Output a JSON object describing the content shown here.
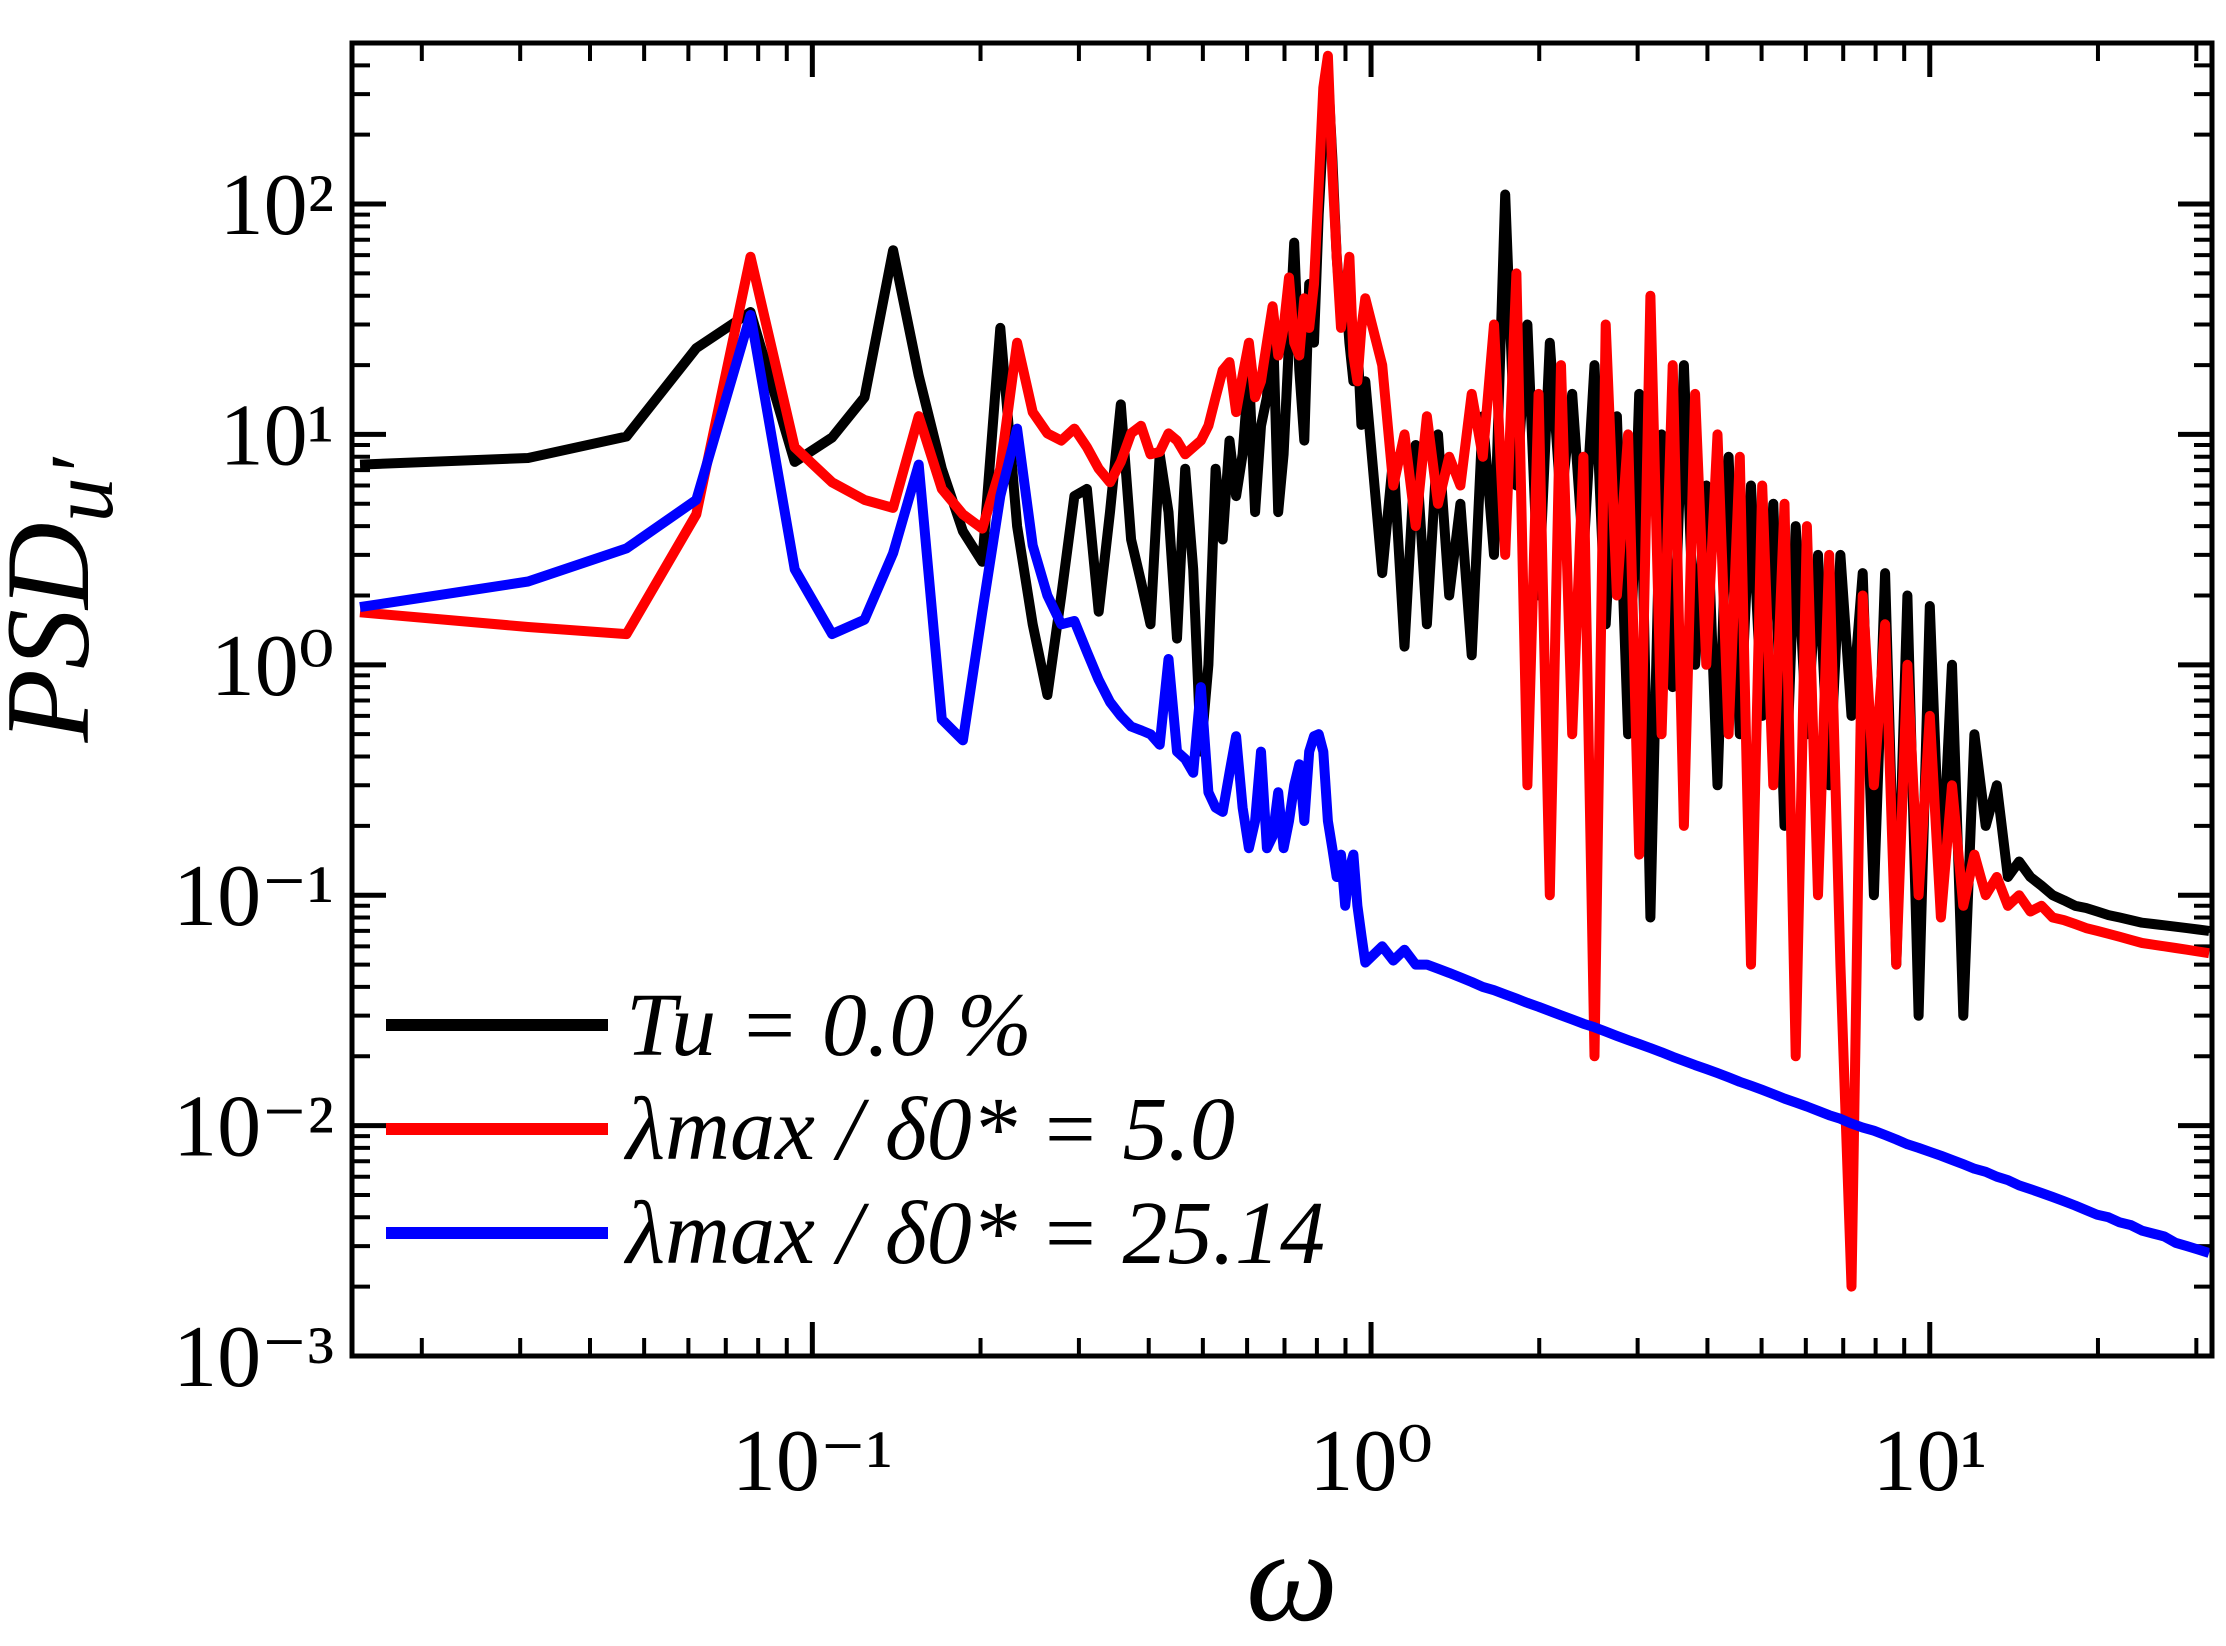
{
  "chart_data": {
    "type": "line",
    "xlabel": "ω",
    "ylabel": "PSD",
    "ylabel_sub": "u′",
    "xscale": "log",
    "yscale": "log",
    "xlim": [
      0.015,
      32
    ],
    "ylim": [
      0.001,
      500
    ],
    "xticks": [
      {
        "value": 0.1,
        "label": "10⁻¹"
      },
      {
        "value": 1,
        "label": "10⁰"
      },
      {
        "value": 10,
        "label": "10¹"
      }
    ],
    "yticks": [
      {
        "value": 0.001,
        "label": "10⁻³"
      },
      {
        "value": 0.01,
        "label": "10⁻²"
      },
      {
        "value": 0.1,
        "label": "10⁻¹"
      },
      {
        "value": 1,
        "label": "10⁰"
      },
      {
        "value": 10,
        "label": "10¹"
      },
      {
        "value": 100,
        "label": "10²"
      }
    ],
    "legend": "lower left",
    "x": [
      0.0155,
      0.031,
      0.0465,
      0.062,
      0.0775,
      0.093,
      0.1085,
      0.124,
      0.1395,
      0.155,
      0.1705,
      0.186,
      0.2015,
      0.217,
      0.2325,
      0.248,
      0.2635,
      0.279,
      0.2945,
      0.31,
      0.3255,
      0.341,
      0.3565,
      0.372,
      0.3875,
      0.403,
      0.4185,
      0.434,
      0.4495,
      0.465,
      0.4805,
      0.496,
      0.5115,
      0.527,
      0.5425,
      0.558,
      0.5735,
      0.589,
      0.6045,
      0.62,
      0.6355,
      0.651,
      0.6665,
      0.682,
      0.6975,
      0.713,
      0.7285,
      0.744,
      0.7595,
      0.775,
      0.7905,
      0.806,
      0.8215,
      0.837,
      0.8525,
      0.868,
      0.8835,
      0.899,
      0.9145,
      0.93,
      0.9455,
      0.961,
      0.9765,
      1.047,
      1.096,
      1.148,
      1.202,
      1.259,
      1.318,
      1.38,
      1.445,
      1.514,
      1.585,
      1.66,
      1.738,
      1.82,
      1.905,
      1.995,
      2.089,
      2.188,
      2.291,
      2.399,
      2.512,
      2.63,
      2.754,
      2.884,
      3.02,
      3.162,
      3.311,
      3.467,
      3.631,
      3.802,
      3.981,
      4.169,
      4.365,
      4.571,
      4.786,
      5.012,
      5.248,
      5.495,
      5.754,
      6.026,
      6.31,
      6.607,
      6.918,
      7.244,
      7.586,
      7.943,
      8.318,
      8.71,
      9.12,
      9.55,
      10.0,
      10.47,
      10.96,
      11.48,
      12.02,
      12.59,
      13.18,
      13.8,
      14.45,
      15.14,
      15.85,
      16.6,
      17.38,
      18.2,
      19.05,
      19.95,
      20.89,
      21.88,
      22.91,
      23.99,
      25.12,
      26.3,
      27.54,
      28.84,
      30.2,
      31.62
    ],
    "series": [
      {
        "name": "Tu = 0.0 %",
        "color": "#000000",
        "values": [
          7.4,
          7.9,
          9.8,
          23.7,
          34,
          7.6,
          9.7,
          14.5,
          63,
          18,
          7.1,
          3.8,
          2.8,
          29,
          4,
          1.5,
          0.74,
          2,
          5.4,
          5.8,
          1.7,
          4.6,
          13.5,
          3.5,
          2.3,
          1.5,
          8.2,
          4.6,
          1.3,
          7.1,
          2.6,
          0.42,
          1,
          7.1,
          3.5,
          9.4,
          5.4,
          8.2,
          19,
          4.6,
          10.9,
          14.5,
          34,
          4.6,
          8.2,
          25,
          68,
          19,
          9.4,
          45,
          25,
          90,
          210,
          370,
          160,
          59,
          34,
          45,
          25,
          17,
          25,
          11,
          17,
          2.5,
          8,
          1.2,
          9,
          1.5,
          10,
          2,
          5,
          1.1,
          12,
          3,
          110,
          6,
          30,
          2,
          25,
          5,
          15,
          3,
          20,
          1.5,
          12,
          0.5,
          15,
          0.08,
          10,
          0.8,
          20,
          1,
          6,
          0.3,
          8,
          0.5,
          6,
          0.6,
          5,
          0.2,
          4,
          0.5,
          3,
          0.3,
          3,
          0.6,
          2.5,
          0.1,
          2.5,
          0.05,
          2,
          0.03,
          1.8,
          0.1,
          1,
          0.03,
          0.5,
          0.2,
          0.3,
          0.12,
          0.14,
          0.12,
          0.11,
          0.1,
          0.095,
          0.09,
          0.088,
          0.085,
          0.082,
          0.08,
          0.078,
          0.076,
          0.075,
          0.074,
          0.073,
          0.072,
          0.071,
          0.07
        ]
      },
      {
        "name": "λmax / δ0* = 5.0",
        "color": "#ff0000",
        "values": [
          1.69,
          1.46,
          1.36,
          4.5,
          59,
          8.8,
          6.2,
          5.2,
          4.8,
          12,
          5.8,
          4.5,
          3.9,
          7.1,
          25,
          12.5,
          10.1,
          9.4,
          10.6,
          8.8,
          7.1,
          6.2,
          7.6,
          10.1,
          10.9,
          8.2,
          8.4,
          10.1,
          9.4,
          8.2,
          8.8,
          9.4,
          10.9,
          14.5,
          19,
          20.6,
          12.5,
          18,
          25,
          14.5,
          17,
          25,
          36,
          22,
          29,
          48,
          25,
          22,
          39,
          29,
          45,
          120,
          320,
          440,
          140,
          59,
          29,
          39,
          59,
          22,
          17,
          29,
          39,
          20,
          6,
          10,
          4,
          12,
          5,
          8,
          6,
          15,
          8,
          30,
          3,
          50,
          0.3,
          15,
          0.1,
          20,
          0.5,
          8,
          0.02,
          30,
          2,
          10,
          0.15,
          40,
          0.5,
          20,
          0.2,
          15,
          1,
          10,
          0.5,
          8,
          0.05,
          6,
          0.3,
          5,
          0.02,
          4,
          0.1,
          3,
          0.05,
          0.002,
          2,
          0.3,
          1.5,
          0.05,
          1,
          0.1,
          0.6,
          0.08,
          0.3,
          0.09,
          0.15,
          0.1,
          0.12,
          0.09,
          0.1,
          0.085,
          0.09,
          0.08,
          0.078,
          0.075,
          0.072,
          0.07,
          0.068,
          0.066,
          0.064,
          0.062,
          0.061,
          0.06,
          0.059,
          0.058,
          0.057,
          0.056
        ]
      },
      {
        "name": "λmax / δ0* = 25.14",
        "color": "#0000ff",
        "values": [
          1.78,
          2.3,
          3.2,
          5.2,
          33,
          2.6,
          1.36,
          1.57,
          3.05,
          7.4,
          0.58,
          0.47,
          1.7,
          5.4,
          10.6,
          3.3,
          2,
          1.5,
          1.55,
          1.14,
          0.86,
          0.69,
          0.6,
          0.54,
          0.52,
          0.5,
          0.45,
          1.06,
          0.42,
          0.39,
          0.34,
          0.8,
          0.28,
          0.24,
          0.23,
          0.34,
          0.49,
          0.24,
          0.16,
          0.21,
          0.42,
          0.16,
          0.18,
          0.28,
          0.16,
          0.21,
          0.3,
          0.37,
          0.21,
          0.42,
          0.49,
          0.5,
          0.42,
          0.21,
          0.16,
          0.12,
          0.15,
          0.09,
          0.13,
          0.15,
          0.09,
          0.067,
          0.051,
          0.06,
          0.052,
          0.058,
          0.05,
          0.05,
          0.048,
          0.046,
          0.044,
          0.042,
          0.04,
          0.0387,
          0.0371,
          0.0356,
          0.0341,
          0.0328,
          0.0314,
          0.0301,
          0.0289,
          0.0277,
          0.0267,
          0.0256,
          0.0245,
          0.0235,
          0.0226,
          0.0217,
          0.0208,
          0.0199,
          0.0191,
          0.0183,
          0.0176,
          0.0169,
          0.0162,
          0.0155,
          0.0149,
          0.0143,
          0.0137,
          0.0131,
          0.0126,
          0.0121,
          0.0116,
          0.0111,
          0.0107,
          0.0102,
          0.0098,
          0.0095,
          0.0091,
          0.0087,
          0.0083,
          0.008,
          0.0077,
          0.0074,
          0.0071,
          0.0068,
          0.0065,
          0.0063,
          0.006,
          0.0058,
          0.0055,
          0.0053,
          0.0051,
          0.0049,
          0.0047,
          0.0045,
          0.0043,
          0.0041,
          0.004,
          0.0038,
          0.0037,
          0.0035,
          0.0034,
          0.0033,
          0.0031,
          0.003,
          0.0029,
          0.0028
        ]
      }
    ]
  }
}
